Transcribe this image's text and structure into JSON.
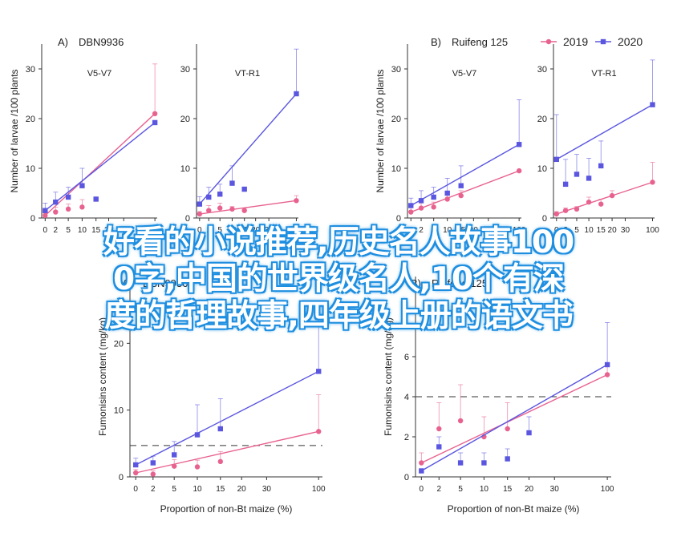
{
  "legend": {
    "items": [
      {
        "label": "2019",
        "color": "#e8628f"
      },
      {
        "label": "2020",
        "color": "#5a56e0"
      }
    ]
  },
  "overlay": {
    "line1": "好看的小说推荐,历史名人故事100",
    "line2": "0字,中国的世界级名人,10个有深",
    "line3": "度的哲理故事,四年级上册的语文书"
  },
  "chart_data": [
    {
      "type": "line",
      "panel": "A-top",
      "title": "DBN9936",
      "subtitle": "V5-V7",
      "ylabel": "Number of larvae /100 plants",
      "ylim": [
        0,
        35
      ],
      "yticks": [
        0,
        10,
        20,
        30
      ],
      "xticks": [
        "0",
        "2",
        "5",
        "10",
        "15",
        "20",
        "30",
        "100"
      ],
      "series": [
        {
          "name": "2019",
          "x": [
            0,
            2,
            5,
            10,
            100
          ],
          "y": [
            0.5,
            1.2,
            1.8,
            2.2,
            21.0
          ],
          "err": [
            0.5,
            1,
            1,
            1.5,
            10
          ]
        },
        {
          "name": "2020",
          "x": [
            0,
            2,
            5,
            10,
            15,
            100
          ],
          "y": [
            1.5,
            3.2,
            4.2,
            6.5,
            3.8,
            19.2
          ],
          "err": [
            1.5,
            2,
            2,
            3.5,
            0,
            0
          ]
        }
      ]
    },
    {
      "type": "line",
      "panel": "A-top-2",
      "subtitle": "VT-R1",
      "ylim": [
        0,
        35
      ],
      "yticks": [
        0,
        10,
        20,
        30
      ],
      "xticks": [
        "0",
        "2",
        "5",
        "10",
        "15",
        "20",
        "30",
        "100"
      ],
      "series": [
        {
          "name": "2019",
          "x": [
            0,
            2,
            5,
            10,
            15,
            100
          ],
          "y": [
            0.8,
            1.5,
            2.0,
            1.8,
            1.5,
            3.5
          ],
          "err": [
            0.5,
            1,
            1,
            0.5,
            0.5,
            1
          ]
        },
        {
          "name": "2020",
          "x": [
            0,
            2,
            5,
            10,
            15,
            100
          ],
          "y": [
            2.8,
            4.2,
            4.8,
            7.0,
            5.8,
            25.0
          ],
          "err": [
            1.5,
            2,
            2,
            3.5,
            0,
            9
          ]
        }
      ]
    },
    {
      "type": "line",
      "panel": "B-top",
      "title": "Ruifeng 125",
      "subtitle": "V5-V7",
      "ylabel": "Number of larvae /100 plants",
      "ylim": [
        0,
        35
      ],
      "yticks": [
        0,
        10,
        20,
        30
      ],
      "xticks": [
        "0",
        "2",
        "5",
        "10",
        "15",
        "20",
        "30",
        "100"
      ],
      "series": [
        {
          "name": "2019",
          "x": [
            0,
            2,
            5,
            10,
            15,
            100
          ],
          "y": [
            1.2,
            2.0,
            2.2,
            3.8,
            4.5,
            9.5
          ],
          "err": [
            1,
            1,
            1,
            1,
            1,
            0
          ]
        },
        {
          "name": "2020",
          "x": [
            0,
            2,
            5,
            10,
            15,
            100
          ],
          "y": [
            2.5,
            3.5,
            4.2,
            5.0,
            6.5,
            14.8
          ],
          "err": [
            1.5,
            2,
            2,
            3,
            4,
            9
          ]
        }
      ]
    },
    {
      "type": "line",
      "panel": "B-top-2",
      "subtitle": "VT-R1",
      "ylim": [
        0,
        35
      ],
      "yticks": [
        0,
        10,
        20,
        30
      ],
      "xticks": [
        "0",
        "2",
        "5",
        "10",
        "15",
        "20",
        "30",
        "100"
      ],
      "series": [
        {
          "name": "2019",
          "x": [
            0,
            2,
            5,
            10,
            15,
            20,
            100
          ],
          "y": [
            0.8,
            1.5,
            1.8,
            3.2,
            2.8,
            4.5,
            7.2
          ],
          "err": [
            0.5,
            0.5,
            0.5,
            1,
            1,
            1,
            4
          ]
        },
        {
          "name": "2020",
          "x": [
            0,
            2,
            5,
            10,
            15,
            100
          ],
          "y": [
            11.8,
            6.8,
            8.8,
            8.0,
            10.5,
            22.8
          ],
          "err": [
            9,
            5,
            4,
            4,
            5,
            9
          ]
        }
      ]
    },
    {
      "type": "line",
      "panel": "A-bottom",
      "title": "DBN9936",
      "ylabel": "Fumonisins content (mg/kg)",
      "xlabel": "Proportion of non-Bt maize (%)",
      "ylim": [
        0,
        30
      ],
      "yticks": [
        0,
        10,
        20
      ],
      "threshold": 4.7,
      "xticks": [
        "0",
        "2",
        "5",
        "10",
        "15",
        "20",
        "30",
        "100"
      ],
      "series": [
        {
          "name": "2019",
          "x": [
            0,
            2,
            5,
            10,
            15,
            100
          ],
          "y": [
            0.6,
            0.4,
            1.6,
            1.5,
            2.3,
            6.8
          ],
          "err": [
            0.5,
            0.5,
            1,
            1,
            1.5,
            5.5
          ]
        },
        {
          "name": "2020",
          "x": [
            0,
            2,
            5,
            10,
            15,
            100
          ],
          "y": [
            1.8,
            2.1,
            3.3,
            6.3,
            7.2,
            15.8
          ],
          "err": [
            1,
            1,
            2,
            4.5,
            4.5,
            10
          ]
        }
      ]
    },
    {
      "type": "line",
      "panel": "B-bottom",
      "title": "Ruifeng 125",
      "ylabel": "Fumonisins content (mg/kg)",
      "xlabel": "Proportion of non-Bt maize (%)",
      "ylim": [
        0,
        10
      ],
      "yticks": [
        0,
        2,
        4,
        6
      ],
      "threshold": 4.0,
      "xticks": [
        "0",
        "2",
        "5",
        "10",
        "15",
        "20",
        "30",
        "100"
      ],
      "series": [
        {
          "name": "2019",
          "x": [
            0,
            2,
            5,
            10,
            15,
            100
          ],
          "y": [
            0.7,
            2.4,
            2.8,
            2.0,
            2.4,
            5.1
          ],
          "err": [
            0.5,
            1.3,
            1.8,
            1,
            1.3,
            0.5
          ]
        },
        {
          "name": "2020",
          "x": [
            0,
            2,
            5,
            10,
            15,
            20,
            100
          ],
          "y": [
            0.3,
            1.5,
            0.7,
            0.7,
            0.9,
            2.2,
            5.6
          ],
          "err": [
            0,
            0.5,
            0.5,
            0.5,
            0.5,
            0.8,
            2.1
          ]
        }
      ]
    }
  ]
}
